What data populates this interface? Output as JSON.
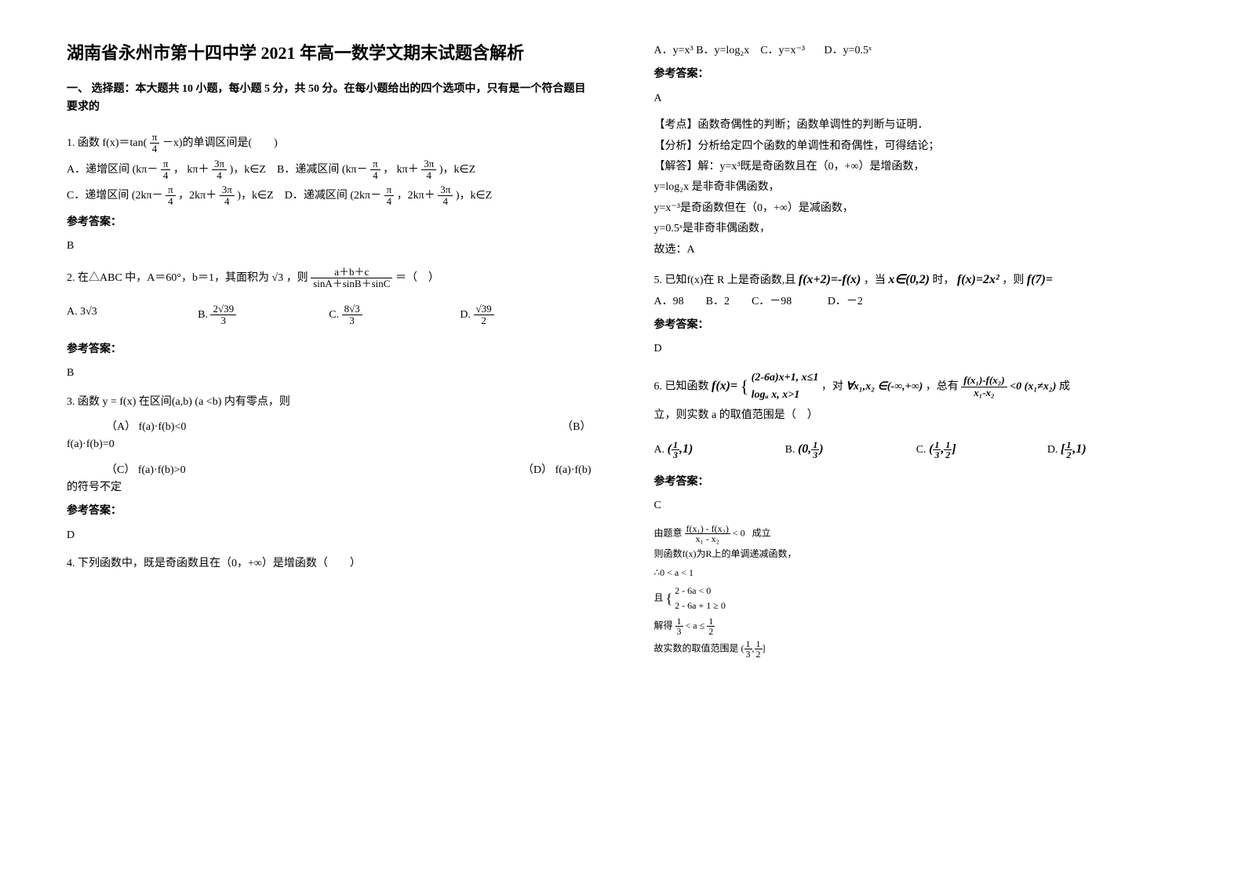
{
  "colors": {
    "text": "#000000",
    "background": "#ffffff"
  },
  "typography": {
    "title_fontsize": 22,
    "body_fontsize": 14,
    "small_fontsize": 12,
    "font_family": "SimSun"
  },
  "title": "湖南省永州市第十四中学 2021 年高一数学文期末试题含解析",
  "section_intro": "一、 选择题：本大题共 10 小题，每小题 5 分，共 50 分。在每小题给出的四个选项中，只有是一个符合题目要求的",
  "q1": {
    "stem_prefix": "1. 函数 f(x)＝tan(",
    "frac_num": "π",
    "frac_den": "4",
    "stem_suffix": " －x)的单调区间是(　　)",
    "optA_pre": "A．递增区间 (kπ－",
    "comma": "，",
    "paren_mid": " kπ＋",
    "optA_suf": " )，k∈Z",
    "optB_pre": "B．递减区间 (kπ－",
    "optB_suf": " )，k∈Z",
    "optC_pre": "C．递增区间 (2kπ－",
    "optC_mid": "，2kπ＋",
    "optC_suf": " )，k∈Z",
    "optD_pre": "D．递减区间 (2kπ－",
    "optD_suf": " )，k∈Z",
    "frac3_num": "3π",
    "answer_label": "参考答案：",
    "answer": "B"
  },
  "q2": {
    "stem_pre": "2. 在△ABC 中，A＝60°，b＝1，其面积为",
    "sqrt3": "√3",
    "stem_mid": "，则",
    "frac_num": "a＋b＋c",
    "frac_den": "sinA＋sinB＋sinC",
    "stem_suf": " ＝（　）",
    "optA": "3√3",
    "optB_num": "2√39",
    "optB_den": "3",
    "optC_num": "8√3",
    "optC_den": "3",
    "optD_num": "√39",
    "optD_den": "2",
    "labelA": "A.",
    "labelB": "B.",
    "labelC": "C.",
    "labelD": "D.",
    "answer_label": "参考答案：",
    "answer": "B"
  },
  "q3": {
    "stem": "3. 函数 y = f(x) 在区间(a,b) (a <b) 内有零点，则",
    "optA": "（A） f(a)·f(b)<0",
    "optB": "（B）",
    "optB_line2": "f(a)·f(b)=0",
    "optC": "（C） f(a)·f(b)>0",
    "optD": "（D） f(a)·f(b)",
    "optD_line2": "的符号不定",
    "answer_label": "参考答案：",
    "answer": "D"
  },
  "q4": {
    "stem": "4. 下列函数中，既是奇函数且在（0，+∞）是增函数（　　）",
    "optA": "A．y=x³",
    "optB": "B．y=log₂x",
    "optC": "C．y=x⁻³",
    "optD": "D．y=0.5ˣ",
    "answer_label": "参考答案：",
    "answer": "A",
    "exp1": "【考点】函数奇偶性的判断；函数单调性的判断与证明．",
    "exp2": "【分析】分析给定四个函数的单调性和奇偶性，可得结论；",
    "exp3": "【解答】解：y=x³既是奇函数且在（0，+∞）是增函数，",
    "exp4": "y=log₂x 是非奇非偶函数，",
    "exp5": "y=x⁻³是奇函数但在（0，+∞）是减函数，",
    "exp6": "y=0.5ˣ是非奇非偶函数，",
    "exp7": "故选：A"
  },
  "q5": {
    "stem_pre": "5. 已知f(x)在 R 上是奇函数,且",
    "eq1": "f(x+2)=-f(x)",
    "mid1": "，当",
    "dom": "x∈(0,2)",
    "mid2": "时，",
    "eq2": "f(x)=2x²",
    "mid3": "，则",
    "eq3": "f(7)=",
    "optA": "A．98",
    "optB": "B．2",
    "optC": "C．－98",
    "optD": "D．－2",
    "answer_label": "参考答案：",
    "answer": "D"
  },
  "q6": {
    "stem_pre": "6. 已知函数",
    "piece_a": "(2-6a)x+1, x≤1",
    "piece_b": "logₐ x, x>1",
    "func": "f(x)=",
    "mid1": "，对",
    "forall": "∀x₁,x₂ ∈(-∞,+∞)",
    "mid2": "，总有",
    "frac_num": "f(x₁)-f(x₂)",
    "frac_den": "x₁-x₂",
    "lt0": "<0",
    "cond": "(x₁≠x₂)",
    "suf": "成",
    "line2": "立，则实数 a 的取值范围是（　）",
    "optA_l": "(",
    "optA_num1": "1",
    "optA_den1": "3",
    "optA_r": ",1)",
    "optB_l": "(0,",
    "optB_num": "1",
    "optB_den": "3",
    "optB_r": ")",
    "optC_l": "(",
    "optC_m": ",",
    "optC_num2": "1",
    "optC_den2": "2",
    "optC_r": "]",
    "optD_l": "[",
    "optD_r": ",1)",
    "labelA": "A.",
    "labelB": "B.",
    "labelC": "C.",
    "labelD": "D.",
    "answer_label": "参考答案：",
    "answer": "C",
    "sol1_pre": "由题意",
    "sol1_num": "f(x₁) - f(x₂)",
    "sol1_den": "x₁ - x₂",
    "sol1_lt": "< 0",
    "sol1_suf": "成立",
    "sol2": "则函数f(x)为R上的单调递减函数，",
    "sol3": "∴0 < a < 1",
    "sol4_pre": "且",
    "sol4_a": "2 - 6a < 0",
    "sol4_b": "2 - 6a + 1 ≥ 0",
    "sol5_pre": "解得",
    "sol5_num1": "1",
    "sol5_den1": "3",
    "sol5_mid": "< a ≤",
    "sol5_num2": "1",
    "sol5_den2": "2",
    "sol6_pre": "故实数的取值范围是",
    "sol6_l": "(",
    "sol6_m": ",",
    "sol6_r": "]"
  }
}
